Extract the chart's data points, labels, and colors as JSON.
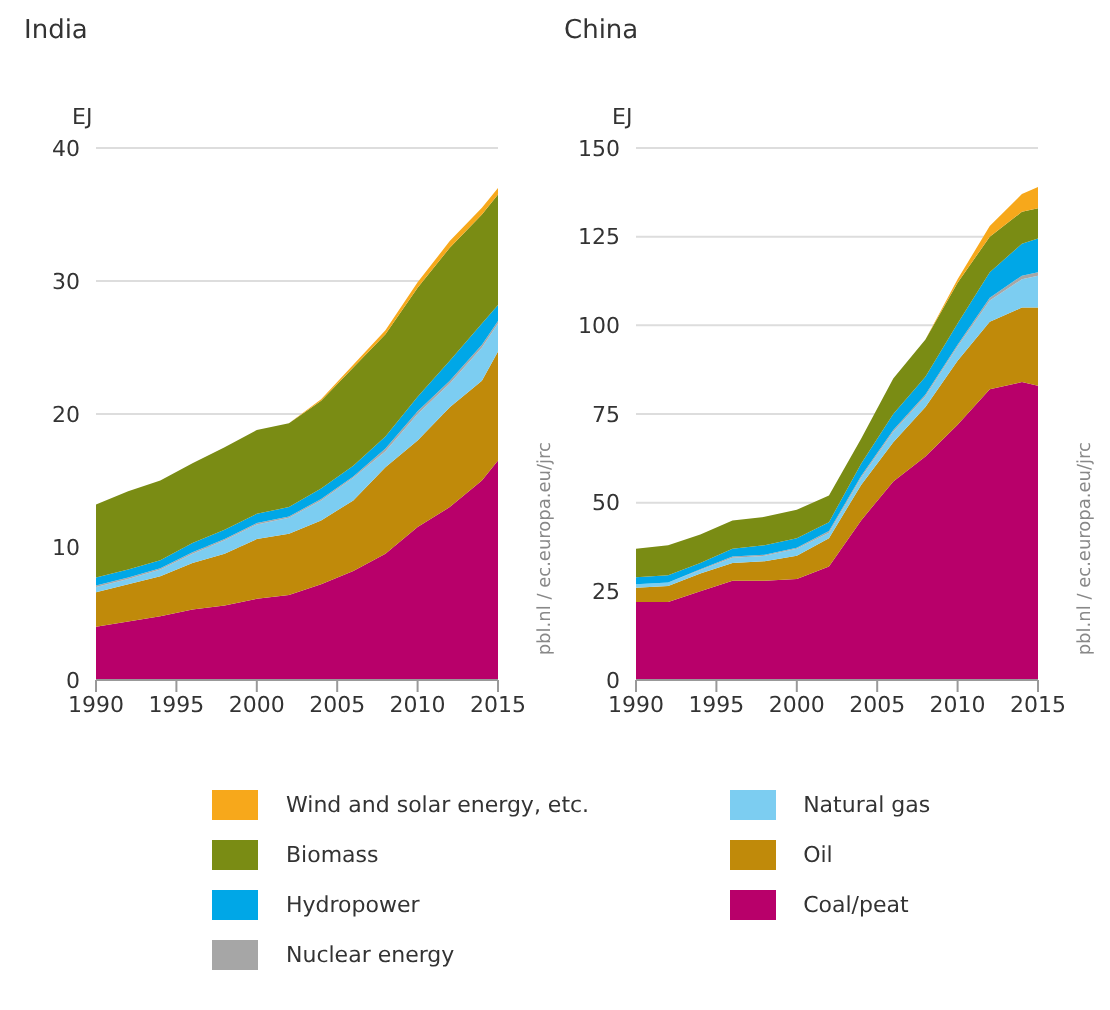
{
  "chart_data": [
    {
      "type": "area",
      "title": "India",
      "ylabel": "EJ",
      "x": [
        1990,
        1992,
        1994,
        1996,
        1998,
        2000,
        2002,
        2004,
        2006,
        2008,
        2010,
        2012,
        2014,
        2015
      ],
      "stacked": true,
      "xlim": [
        1990,
        2015
      ],
      "xticks": [
        1990,
        1995,
        2000,
        2005,
        2010,
        2015
      ],
      "ylim": [
        0,
        40
      ],
      "yticks": [
        0,
        10,
        20,
        30,
        40
      ],
      "grid": "y",
      "legend": "bottom",
      "annotations": [
        "pbl.nl / ec.europa.eu/jrc"
      ],
      "series": [
        {
          "name": "Coal/peat",
          "color": "#b8006a",
          "values": [
            4.0,
            4.4,
            4.8,
            5.3,
            5.6,
            6.1,
            6.4,
            7.2,
            8.2,
            9.5,
            11.5,
            13.0,
            15.0,
            16.5
          ]
        },
        {
          "name": "Oil",
          "color": "#c08a0a",
          "values": [
            2.6,
            2.8,
            3.0,
            3.5,
            3.9,
            4.5,
            4.6,
            4.8,
            5.3,
            6.5,
            6.5,
            7.5,
            7.5,
            8.2
          ]
        },
        {
          "name": "Natural gas",
          "color": "#7ccdf1",
          "values": [
            0.4,
            0.4,
            0.5,
            0.7,
            1.0,
            1.1,
            1.2,
            1.5,
            1.7,
            1.2,
            2.0,
            1.8,
            2.5,
            2.1
          ]
        },
        {
          "name": "Nuclear energy",
          "color": "#a6a6a6",
          "values": [
            0.1,
            0.1,
            0.1,
            0.1,
            0.1,
            0.1,
            0.1,
            0.1,
            0.1,
            0.2,
            0.2,
            0.2,
            0.2,
            0.2
          ]
        },
        {
          "name": "Hydropower",
          "color": "#00a7e7",
          "values": [
            0.6,
            0.6,
            0.6,
            0.7,
            0.7,
            0.7,
            0.7,
            0.8,
            0.8,
            0.9,
            1.1,
            1.5,
            1.6,
            1.2
          ]
        },
        {
          "name": "Biomass",
          "color": "#7a8c14",
          "values": [
            5.5,
            5.9,
            6.0,
            6.0,
            6.2,
            6.3,
            6.3,
            6.6,
            7.4,
            7.7,
            8.2,
            8.5,
            8.2,
            8.3
          ]
        },
        {
          "name": "Wind and solar energy, etc.",
          "color": "#f7a81b",
          "values": [
            0,
            0,
            0,
            0,
            0,
            0,
            0,
            0.1,
            0.2,
            0.3,
            0.4,
            0.5,
            0.5,
            0.5
          ]
        }
      ]
    },
    {
      "type": "area",
      "title": "China",
      "ylabel": "EJ",
      "x": [
        1990,
        1992,
        1994,
        1996,
        1998,
        2000,
        2002,
        2004,
        2006,
        2008,
        2010,
        2012,
        2014,
        2015
      ],
      "stacked": true,
      "xlim": [
        1990,
        2015
      ],
      "xticks": [
        1990,
        1995,
        2000,
        2005,
        2010,
        2015
      ],
      "ylim": [
        0,
        150
      ],
      "yticks": [
        0,
        25,
        50,
        75,
        100,
        125,
        150
      ],
      "grid": "y",
      "legend": "bottom",
      "annotations": [
        "pbl.nl / ec.europa.eu/jrc"
      ],
      "series": [
        {
          "name": "Coal/peat",
          "color": "#b8006a",
          "values": [
            22,
            22,
            25,
            28,
            28,
            28.5,
            32,
            45,
            56,
            63,
            72,
            82,
            84,
            83
          ]
        },
        {
          "name": "Oil",
          "color": "#c08a0a",
          "values": [
            4,
            4.5,
            5,
            5,
            5.5,
            6.5,
            8,
            10,
            11,
            14,
            18,
            19,
            21,
            22
          ]
        },
        {
          "name": "Natural gas",
          "color": "#7ccdf1",
          "values": [
            1,
            1,
            1,
            1.5,
            1.5,
            2,
            1.5,
            2,
            3,
            3,
            4,
            6,
            8,
            9
          ]
        },
        {
          "name": "Nuclear energy",
          "color": "#a6a6a6",
          "values": [
            0,
            0,
            0.2,
            0.3,
            0.3,
            0.3,
            0.5,
            0.5,
            0.5,
            0.5,
            0.5,
            0.8,
            1,
            1
          ]
        },
        {
          "name": "Hydropower",
          "color": "#00a7e7",
          "values": [
            2,
            2,
            1.8,
            2.2,
            2.7,
            2.7,
            2.5,
            3.5,
            4.5,
            5,
            6,
            7.2,
            9,
            9.5
          ]
        },
        {
          "name": "Biomass",
          "color": "#7a8c14",
          "values": [
            8,
            8.5,
            8,
            8,
            8,
            8,
            7.5,
            7,
            10,
            10.5,
            11.5,
            10,
            9,
            8.5
          ]
        },
        {
          "name": "Wind and solar energy, etc.",
          "color": "#f7a81b",
          "values": [
            0,
            0,
            0,
            0,
            0,
            0,
            0,
            0,
            0,
            0,
            1,
            3,
            5,
            6
          ]
        }
      ]
    }
  ]
}
